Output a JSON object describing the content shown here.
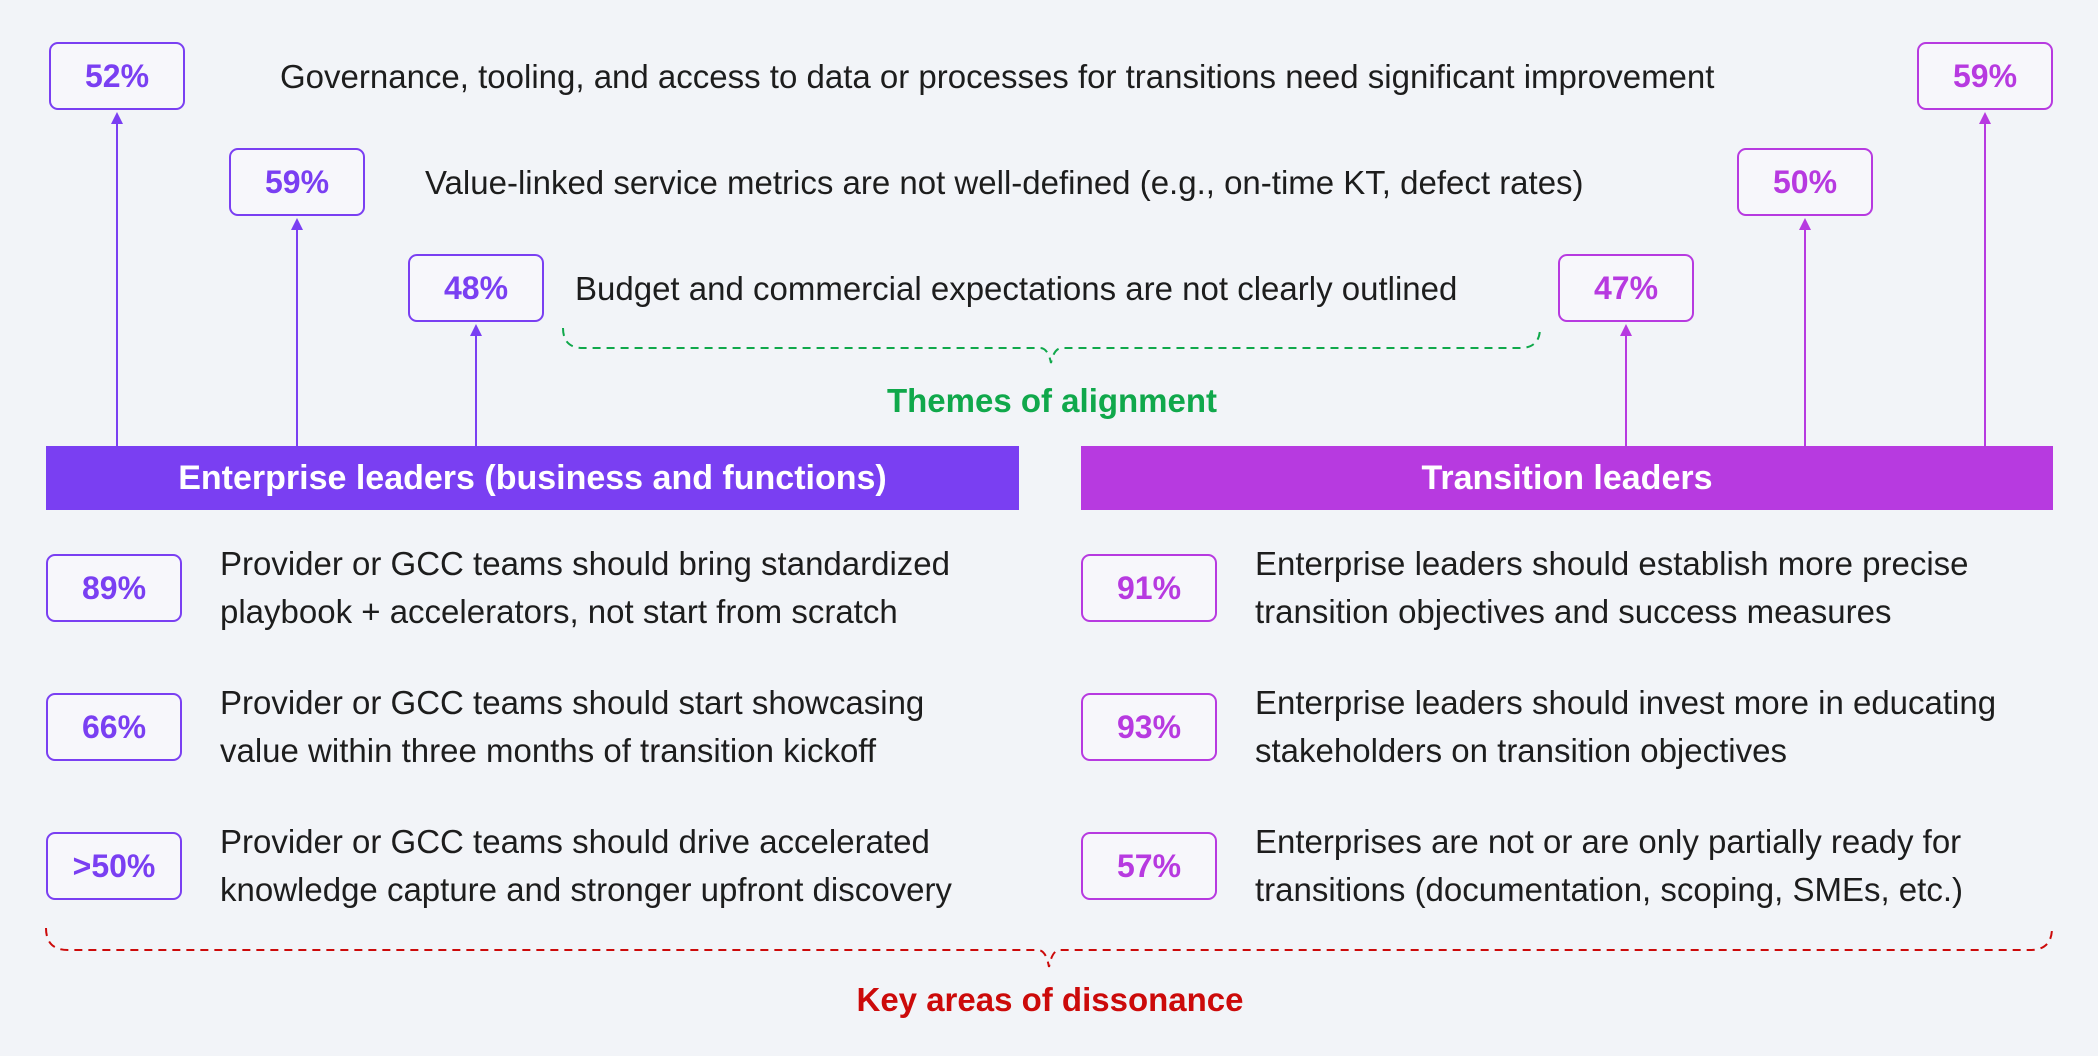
{
  "colors": {
    "enterprise": "#7a3ff2",
    "transition": "#b73ae0",
    "alignment": "#10a84b",
    "dissonance": "#cc0a0a",
    "text": "#1d1d1d",
    "background": "#f2f4f8"
  },
  "alignment": {
    "caption": "Themes of alignment",
    "themes": [
      {
        "text": "Governance, tooling, and access to data or processes for transitions need significant improvement",
        "enterprise_value": "52%",
        "transition_value": "59%"
      },
      {
        "text": "Value-linked service metrics are not well-defined (e.g., on-time KT, defect rates)",
        "enterprise_value": "59%",
        "transition_value": "50%"
      },
      {
        "text": "Budget and commercial expectations are not clearly outlined",
        "enterprise_value": "48%",
        "transition_value": "47%"
      }
    ]
  },
  "enterprise": {
    "header": "Enterprise leaders (business and functions)",
    "items": [
      {
        "value": "89%",
        "line1": "Provider or GCC teams should bring standardized",
        "line2": "playbook + accelerators, not start from scratch"
      },
      {
        "value": "66%",
        "line1": "Provider or GCC teams should start showcasing",
        "line2": "value within three months of transition kickoff"
      },
      {
        "value": ">50%",
        "line1": "Provider or GCC teams should drive accelerated",
        "line2": "knowledge capture and stronger upfront discovery"
      }
    ]
  },
  "transition": {
    "header": "Transition leaders",
    "items": [
      {
        "value": "91%",
        "line1": "Enterprise leaders should establish more precise",
        "line2": "transition objectives and success measures"
      },
      {
        "value": "93%",
        "line1": "Enterprise leaders should invest more in educating",
        "line2": "stakeholders on transition objectives"
      },
      {
        "value": "57%",
        "line1": "Enterprises are not or are only partially ready for",
        "line2": "transitions (documentation, scoping, SMEs, etc.)"
      }
    ]
  },
  "dissonance": {
    "caption": "Key areas of dissonance"
  }
}
